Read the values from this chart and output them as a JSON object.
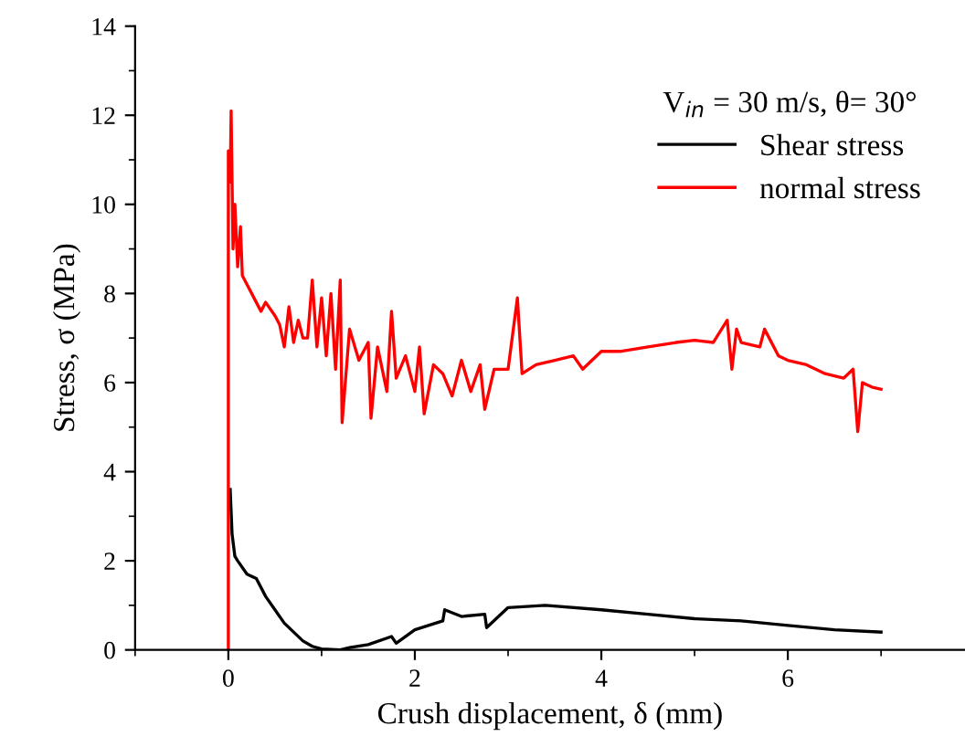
{
  "chart_data": {
    "type": "line",
    "xlabel": "Crush displacement, δ (mm)",
    "ylabel": "Stress, σ (MPa)",
    "legend_title": "V$_{in}$ = 30 m/s, θ= 30°",
    "xlim": [
      -1,
      7.9
    ],
    "ylim": [
      0,
      14
    ],
    "xticks": [
      {
        "value": -1,
        "label": null
      },
      0,
      {
        "value": 1,
        "label": null
      },
      2,
      {
        "value": 3,
        "label": null
      },
      4,
      {
        "value": 5,
        "label": null
      },
      6,
      {
        "value": 7,
        "label": null
      }
    ],
    "yticks": [
      0,
      {
        "value": 1,
        "label": null
      },
      2,
      {
        "value": 3,
        "label": null
      },
      4,
      {
        "value": 5,
        "label": null
      },
      6,
      {
        "value": 7,
        "label": null
      },
      8,
      {
        "value": 9,
        "label": null
      },
      10,
      {
        "value": 11,
        "label": null
      },
      12,
      {
        "value": 13,
        "label": null
      },
      14
    ],
    "legend": "top right",
    "grid": false,
    "marker": "none",
    "line_style": "solid",
    "series": [
      {
        "name": "Shear stress",
        "color": "#000000",
        "x": [
          0.02,
          0.04,
          0.07,
          0.1,
          0.2,
          0.3,
          0.4,
          0.5,
          0.6,
          0.7,
          0.8,
          0.9,
          1.0,
          1.2,
          1.3,
          1.5,
          1.75,
          1.8,
          2.0,
          2.3,
          2.32,
          2.5,
          2.75,
          2.77,
          3.0,
          3.4,
          4.0,
          4.5,
          5.0,
          5.5,
          6.0,
          6.5,
          7.0
        ],
        "values": [
          3.6,
          2.6,
          2.1,
          2.0,
          1.7,
          1.6,
          1.2,
          0.9,
          0.6,
          0.4,
          0.2,
          0.08,
          0.02,
          0.0,
          0.05,
          0.12,
          0.3,
          0.15,
          0.45,
          0.65,
          0.9,
          0.75,
          0.8,
          0.5,
          0.95,
          1.0,
          0.9,
          0.8,
          0.7,
          0.65,
          0.55,
          0.45,
          0.4
        ]
      },
      {
        "name": "normal stress",
        "color": "#ff0000",
        "x": [
          0,
          0.0,
          0.02,
          0.03,
          0.05,
          0.07,
          0.1,
          0.13,
          0.15,
          0.2,
          0.3,
          0.35,
          0.4,
          0.5,
          0.55,
          0.6,
          0.65,
          0.7,
          0.75,
          0.8,
          0.85,
          0.9,
          0.95,
          1.0,
          1.05,
          1.1,
          1.15,
          1.2,
          1.22,
          1.3,
          1.4,
          1.5,
          1.53,
          1.6,
          1.7,
          1.75,
          1.8,
          1.9,
          2.0,
          2.05,
          2.1,
          2.2,
          2.3,
          2.4,
          2.5,
          2.6,
          2.7,
          2.75,
          2.85,
          3.0,
          3.1,
          3.15,
          3.3,
          3.5,
          3.7,
          3.8,
          4.0,
          4.2,
          4.5,
          4.8,
          5.0,
          5.2,
          5.35,
          5.4,
          5.45,
          5.5,
          5.7,
          5.75,
          5.9,
          6.0,
          6.2,
          6.4,
          6.6,
          6.7,
          6.75,
          6.8,
          6.9,
          7.0
        ],
        "values": [
          0,
          11.2,
          10.5,
          12.1,
          9.0,
          10.0,
          8.6,
          9.5,
          8.4,
          8.2,
          7.8,
          7.6,
          7.8,
          7.5,
          7.3,
          6.8,
          7.7,
          6.9,
          7.4,
          7.0,
          7.0,
          8.3,
          6.8,
          7.9,
          6.6,
          8.0,
          6.3,
          8.3,
          5.1,
          7.2,
          6.5,
          6.9,
          5.2,
          6.8,
          5.8,
          7.6,
          6.1,
          6.6,
          5.8,
          6.8,
          5.3,
          6.4,
          6.2,
          5.7,
          6.5,
          5.8,
          6.4,
          5.4,
          6.3,
          6.3,
          7.9,
          6.2,
          6.4,
          6.5,
          6.6,
          6.3,
          6.7,
          6.7,
          6.8,
          6.9,
          6.95,
          6.9,
          7.4,
          6.3,
          7.2,
          6.9,
          6.8,
          7.2,
          6.6,
          6.5,
          6.4,
          6.2,
          6.1,
          6.3,
          4.9,
          6.0,
          5.9,
          5.85
        ]
      }
    ]
  }
}
